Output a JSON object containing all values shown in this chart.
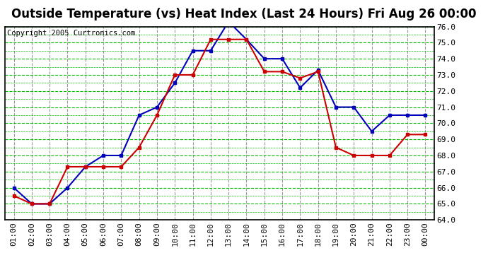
{
  "title": "Outside Temperature (vs) Heat Index (Last 24 Hours) Fri Aug 26 00:00",
  "copyright": "Copyright 2005 Curtronics.com",
  "x_labels": [
    "01:00",
    "02:00",
    "03:00",
    "04:00",
    "05:00",
    "06:00",
    "07:00",
    "08:00",
    "09:00",
    "10:00",
    "11:00",
    "12:00",
    "13:00",
    "14:00",
    "15:00",
    "16:00",
    "17:00",
    "18:00",
    "19:00",
    "20:00",
    "21:00",
    "22:00",
    "23:00",
    "00:00"
  ],
  "blue_data": [
    66.0,
    65.0,
    65.0,
    66.0,
    67.3,
    68.0,
    68.0,
    70.5,
    71.0,
    72.5,
    74.5,
    74.5,
    76.3,
    75.2,
    74.0,
    74.0,
    72.2,
    73.3,
    71.0,
    71.0,
    69.5,
    70.5,
    70.5,
    70.5
  ],
  "red_data": [
    65.5,
    65.0,
    65.0,
    67.3,
    67.3,
    67.3,
    67.3,
    68.5,
    70.5,
    73.0,
    73.0,
    75.2,
    75.2,
    75.2,
    73.2,
    73.2,
    72.8,
    73.2,
    68.5,
    68.0,
    68.0,
    68.0,
    69.3,
    69.3
  ],
  "ylim_min": 64.0,
  "ylim_max": 76.0,
  "ytick_step": 1.0,
  "yticks": [
    64.0,
    65.0,
    66.0,
    67.0,
    68.0,
    69.0,
    70.0,
    71.0,
    72.0,
    73.0,
    74.0,
    75.0,
    76.0
  ],
  "blue_color": "#0000bb",
  "red_color": "#cc0000",
  "green_grid_color": "#00bb00",
  "gray_grid_color": "#999999",
  "bg_color": "#ffffff",
  "plot_bg_color": "#ffffff",
  "title_fontsize": 12,
  "copyright_fontsize": 7.5,
  "tick_fontsize": 8,
  "marker": "s",
  "marker_size": 3,
  "line_width": 1.5
}
